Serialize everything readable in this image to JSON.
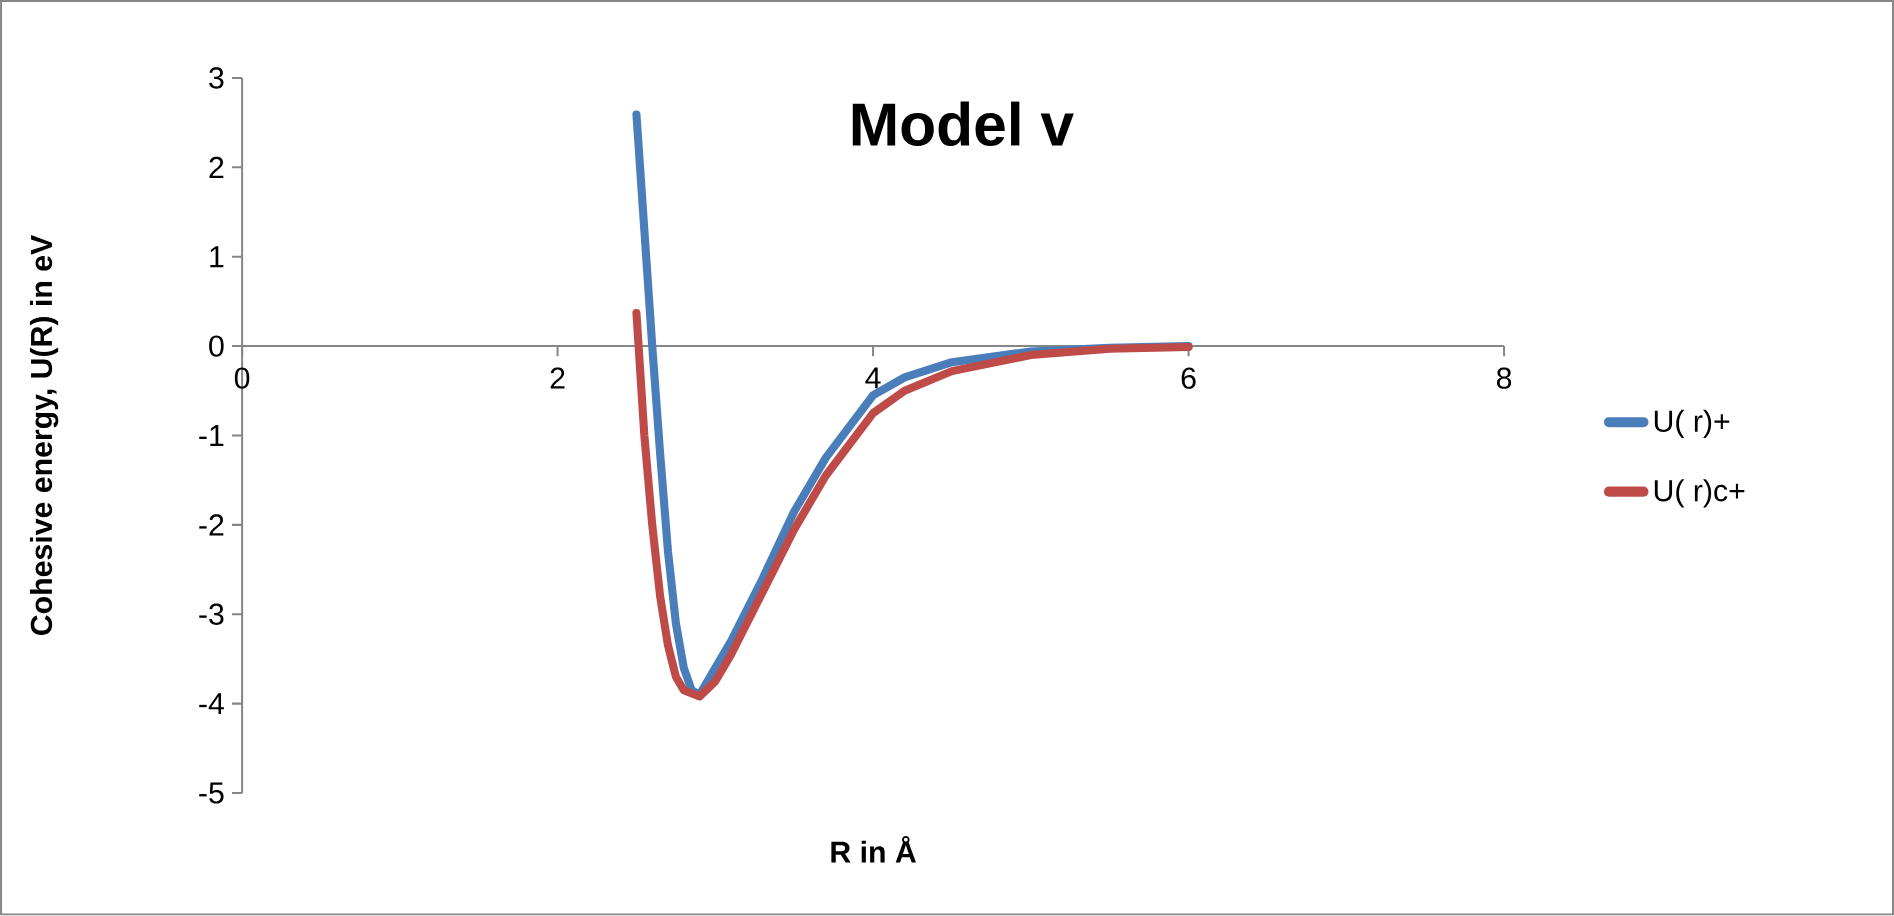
{
  "chart_data": {
    "type": "line",
    "title": "Model v",
    "xlabel": "R in Å",
    "ylabel": "Cohesive energy, U(R) in eV",
    "xlim": [
      0,
      8
    ],
    "xticks": [
      0,
      2,
      4,
      6,
      8
    ],
    "ylim": [
      -5,
      3
    ],
    "yticks": [
      -5,
      -4,
      -3,
      -2,
      -1,
      0,
      1,
      2,
      3
    ],
    "grid": false,
    "legend": "right",
    "marker": "none",
    "line_style": "solid",
    "series": [
      {
        "name": "U( r)+",
        "color": "#4a7ebb",
        "x": [
          2.5,
          2.55,
          2.6,
          2.65,
          2.7,
          2.75,
          2.8,
          2.85,
          2.9,
          3.0,
          3.1,
          3.2,
          3.3,
          3.5,
          3.7,
          4.0,
          4.2,
          4.5,
          5.0,
          5.5,
          6.0
        ],
        "values": [
          2.59,
          1.3,
          0.0,
          -1.2,
          -2.3,
          -3.1,
          -3.6,
          -3.85,
          -3.9,
          -3.6,
          -3.3,
          -2.95,
          -2.6,
          -1.85,
          -1.25,
          -0.55,
          -0.35,
          -0.18,
          -0.06,
          -0.02,
          0
        ]
      },
      {
        "name": "U( r)c+",
        "color": "#be4b48",
        "x": [
          2.5,
          2.55,
          2.6,
          2.65,
          2.7,
          2.75,
          2.8,
          2.9,
          3.0,
          3.1,
          3.2,
          3.3,
          3.5,
          3.7,
          4.0,
          4.2,
          4.5,
          5.0,
          5.5,
          6.0
        ],
        "values": [
          0.37,
          -1.0,
          -2.0,
          -2.8,
          -3.35,
          -3.7,
          -3.85,
          -3.92,
          -3.75,
          -3.45,
          -3.1,
          -2.75,
          -2.05,
          -1.45,
          -0.75,
          -0.5,
          -0.28,
          -0.1,
          -0.03,
          -0.01
        ]
      }
    ]
  }
}
